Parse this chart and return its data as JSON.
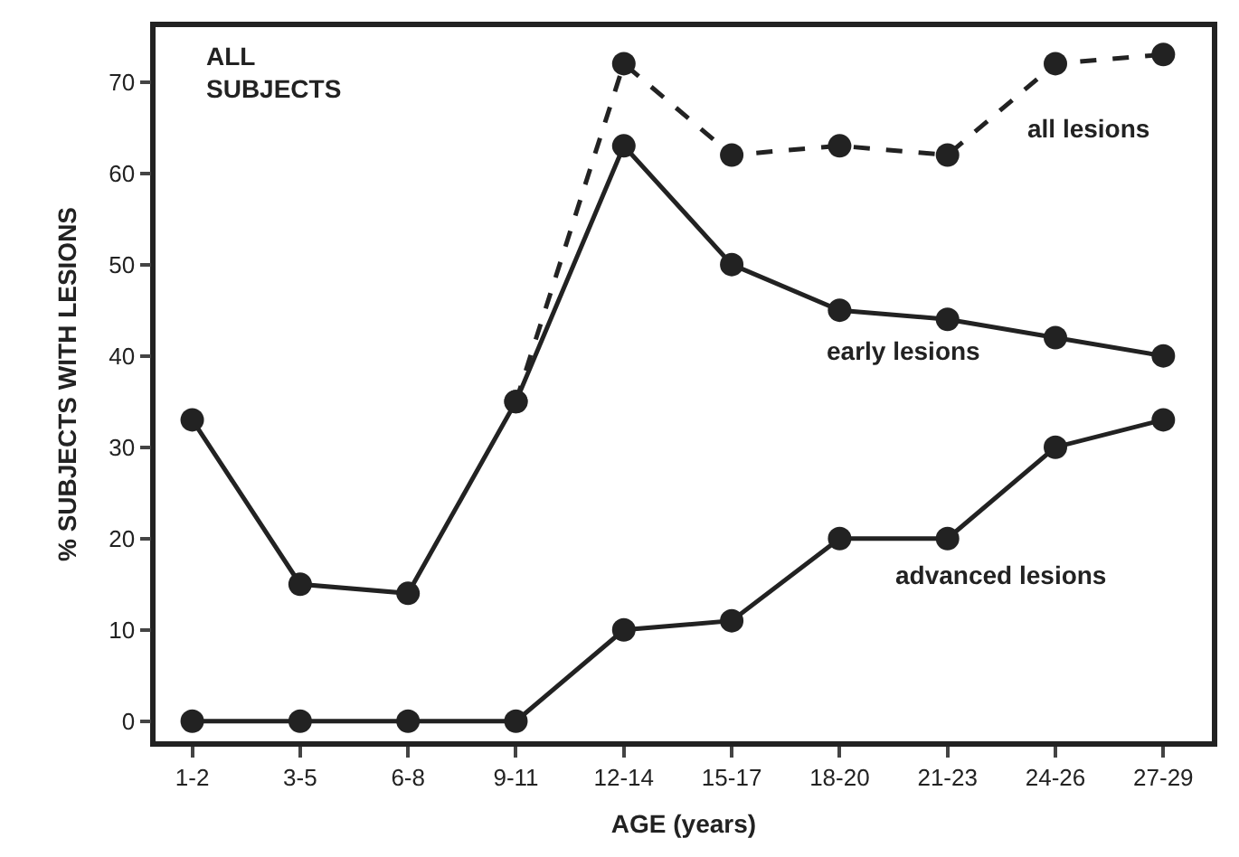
{
  "chart_data": {
    "type": "line",
    "title": "ALL\nSUBJECTS",
    "xlabel": "AGE (years)",
    "ylabel": "% SUBJECTS WITH LESIONS",
    "categories": [
      "1-2",
      "3-5",
      "6-8",
      "9-11",
      "12-14",
      "15-17",
      "18-20",
      "21-23",
      "24-26",
      "27-29"
    ],
    "series": [
      {
        "name": "all lesions",
        "color": "#222222",
        "line_style": "dashed",
        "values": [
          null,
          null,
          null,
          35,
          72,
          62,
          63,
          62,
          72,
          73
        ]
      },
      {
        "name": "early lesions",
        "color": "#222222",
        "line_style": "solid",
        "values": [
          33,
          15,
          14,
          35,
          63,
          50,
          45,
          44,
          42,
          40
        ]
      },
      {
        "name": "advanced lesions",
        "color": "#222222",
        "line_style": "solid",
        "values": [
          0,
          0,
          0,
          0,
          10,
          11,
          20,
          20,
          30,
          33
        ]
      }
    ],
    "ylim": [
      -2.2,
      76
    ],
    "yticks": [
      0,
      10,
      20,
      30,
      40,
      50,
      60,
      70
    ],
    "marker": "circle",
    "legend": false
  }
}
